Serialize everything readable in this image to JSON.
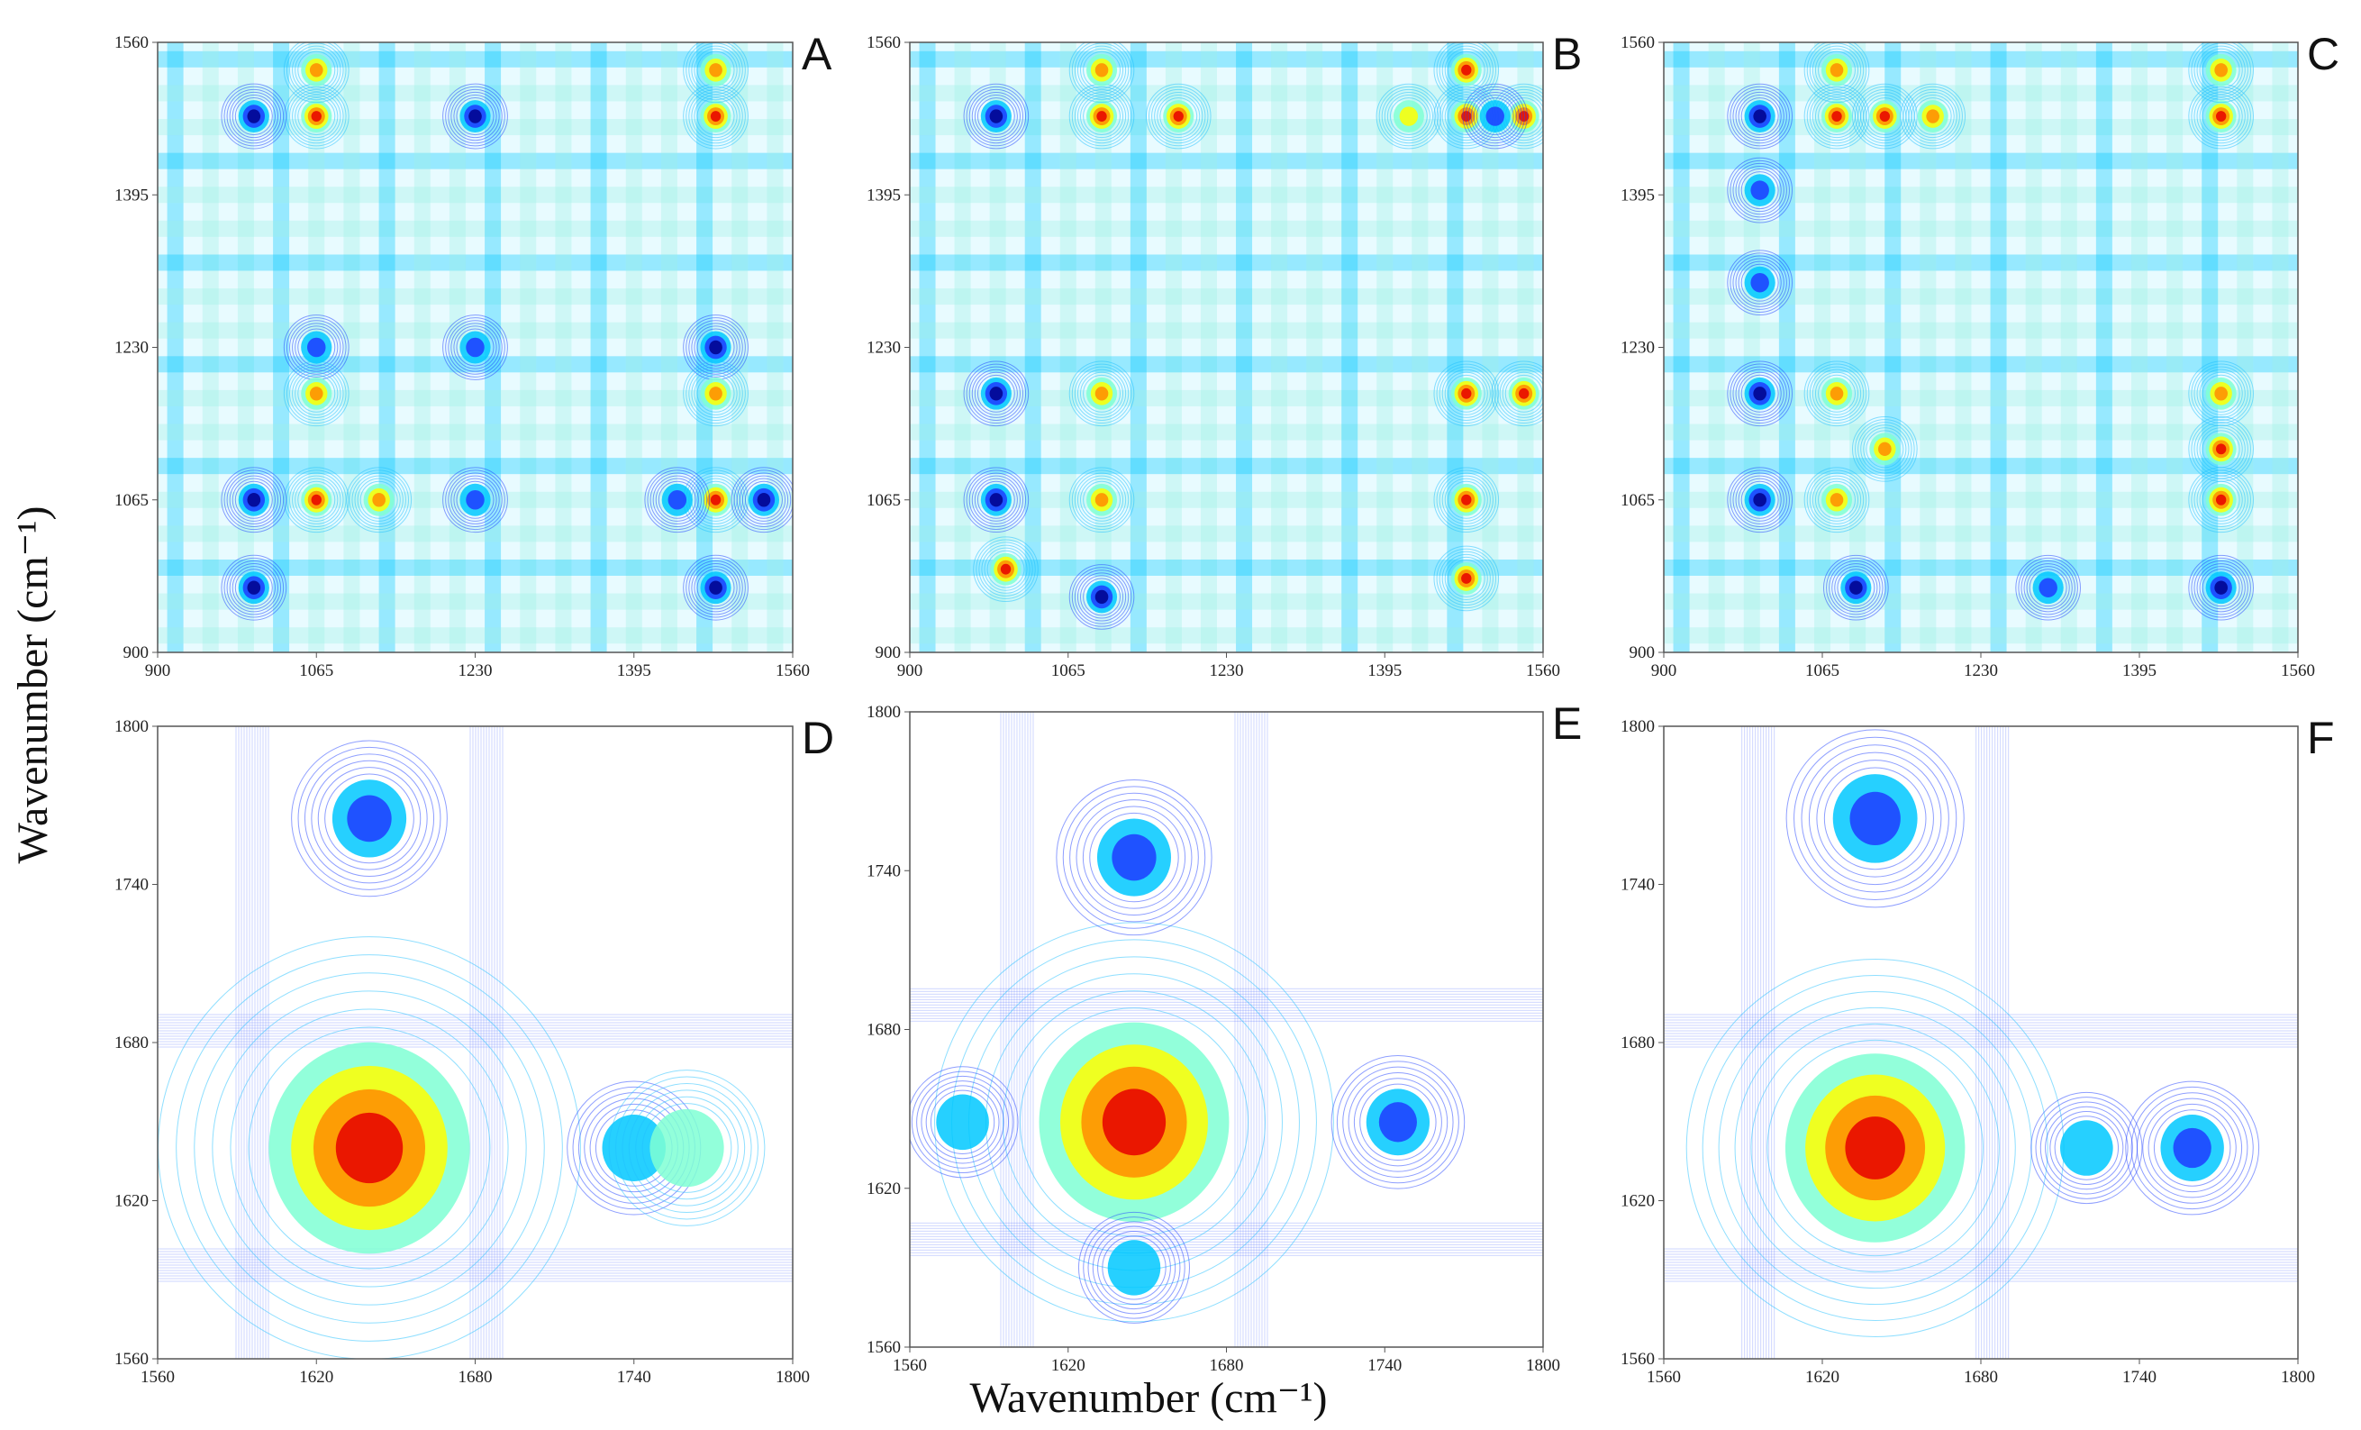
{
  "figure": {
    "ylabel": "Wavenumber (cm⁻¹)",
    "xlabel": "Wavenumber (cm⁻¹)"
  },
  "colors": {
    "scale": [
      "#00008b",
      "#1e3cff",
      "#00c8ff",
      "#7fffd4",
      "#ffff00",
      "#ff8c00",
      "#e60000"
    ]
  },
  "chart_data": [
    {
      "type": "heatmap",
      "label": "A",
      "xlim": [
        900,
        1560
      ],
      "ylim": [
        900,
        1560
      ],
      "xticks": [
        "900",
        "1065",
        "1230",
        "1395",
        "1560"
      ],
      "yticks": [
        "900",
        "1065",
        "1230",
        "1395",
        "1560"
      ],
      "hotspots": [
        {
          "x": 1065,
          "y": 1065,
          "v": 1
        },
        {
          "x": 1000,
          "y": 1065,
          "v": -1
        },
        {
          "x": 1130,
          "y": 1065,
          "v": 0.7
        },
        {
          "x": 1480,
          "y": 1065,
          "v": 1
        },
        {
          "x": 1440,
          "y": 1065,
          "v": -0.8
        },
        {
          "x": 1530,
          "y": 1065,
          "v": -1
        },
        {
          "x": 1065,
          "y": 1480,
          "v": 1
        },
        {
          "x": 1000,
          "y": 1480,
          "v": -1
        },
        {
          "x": 1480,
          "y": 1480,
          "v": 1
        },
        {
          "x": 1230,
          "y": 1480,
          "v": -0.9
        },
        {
          "x": 1230,
          "y": 1230,
          "v": -0.5
        },
        {
          "x": 1480,
          "y": 1230,
          "v": -0.9
        },
        {
          "x": 1065,
          "y": 1230,
          "v": -0.8
        },
        {
          "x": 1065,
          "y": 1530,
          "v": 0.8
        },
        {
          "x": 1480,
          "y": 1530,
          "v": 0.8
        },
        {
          "x": 1065,
          "y": 1180,
          "v": 0.8
        },
        {
          "x": 1480,
          "y": 1180,
          "v": 0.8
        },
        {
          "x": 1000,
          "y": 970,
          "v": -0.9
        },
        {
          "x": 1480,
          "y": 970,
          "v": -0.9
        },
        {
          "x": 1230,
          "y": 1065,
          "v": -0.7
        }
      ]
    },
    {
      "type": "heatmap",
      "label": "B",
      "xlim": [
        900,
        1560
      ],
      "ylim": [
        900,
        1560
      ],
      "xticks": [
        "900",
        "1065",
        "1230",
        "1395",
        "1560"
      ],
      "yticks": [
        "900",
        "1065",
        "1230",
        "1395",
        "1560"
      ],
      "hotspots": [
        {
          "x": 1480,
          "y": 1480,
          "v": 1
        },
        {
          "x": 1540,
          "y": 1480,
          "v": 0.9
        },
        {
          "x": 1100,
          "y": 1480,
          "v": 0.9
        },
        {
          "x": 1180,
          "y": 1480,
          "v": 0.9
        },
        {
          "x": 990,
          "y": 1480,
          "v": -1
        },
        {
          "x": 1510,
          "y": 1480,
          "v": -0.7
        },
        {
          "x": 1480,
          "y": 1065,
          "v": 1
        },
        {
          "x": 1100,
          "y": 1065,
          "v": 0.8
        },
        {
          "x": 990,
          "y": 1065,
          "v": -1
        },
        {
          "x": 1480,
          "y": 1180,
          "v": 1
        },
        {
          "x": 1540,
          "y": 1180,
          "v": 0.9
        },
        {
          "x": 1100,
          "y": 1180,
          "v": 0.8
        },
        {
          "x": 990,
          "y": 1180,
          "v": -1
        },
        {
          "x": 1480,
          "y": 1530,
          "v": 0.9
        },
        {
          "x": 1100,
          "y": 1530,
          "v": 0.8
        },
        {
          "x": 1480,
          "y": 980,
          "v": 1
        },
        {
          "x": 1000,
          "y": 990,
          "v": 0.9
        },
        {
          "x": 1100,
          "y": 960,
          "v": -0.9
        },
        {
          "x": 1420,
          "y": 1480,
          "v": 0.6
        }
      ]
    },
    {
      "type": "heatmap",
      "label": "C",
      "xlim": [
        900,
        1560
      ],
      "ylim": [
        900,
        1560
      ],
      "xticks": [
        "900",
        "1065",
        "1230",
        "1395",
        "1560"
      ],
      "yticks": [
        "900",
        "1065",
        "1230",
        "1395",
        "1560"
      ],
      "hotspots": [
        {
          "x": 1480,
          "y": 1480,
          "v": 1
        },
        {
          "x": 1080,
          "y": 1480,
          "v": 0.9
        },
        {
          "x": 1130,
          "y": 1480,
          "v": 0.9
        },
        {
          "x": 1180,
          "y": 1480,
          "v": 0.8
        },
        {
          "x": 1000,
          "y": 1480,
          "v": -1
        },
        {
          "x": 1480,
          "y": 1530,
          "v": 0.8
        },
        {
          "x": 1080,
          "y": 1530,
          "v": 0.7
        },
        {
          "x": 1480,
          "y": 1065,
          "v": 1
        },
        {
          "x": 1480,
          "y": 1120,
          "v": 0.9
        },
        {
          "x": 1480,
          "y": 1180,
          "v": 0.8
        },
        {
          "x": 1080,
          "y": 1065,
          "v": 0.8
        },
        {
          "x": 1130,
          "y": 1120,
          "v": 0.8
        },
        {
          "x": 1080,
          "y": 1180,
          "v": 0.7
        },
        {
          "x": 1000,
          "y": 1065,
          "v": -1
        },
        {
          "x": 1000,
          "y": 1180,
          "v": -1
        },
        {
          "x": 1100,
          "y": 970,
          "v": -1
        },
        {
          "x": 1480,
          "y": 970,
          "v": -1
        },
        {
          "x": 1300,
          "y": 970,
          "v": -0.8
        },
        {
          "x": 1000,
          "y": 1300,
          "v": -0.7
        },
        {
          "x": 1000,
          "y": 1400,
          "v": -0.8
        }
      ]
    },
    {
      "type": "heatmap",
      "label": "D",
      "xlim": [
        1560,
        1800
      ],
      "ylim": [
        1560,
        1800
      ],
      "xticks": [
        "1560",
        "1620",
        "1680",
        "1740",
        "1800"
      ],
      "yticks": [
        "1560",
        "1620",
        "1680",
        "1740",
        "1800"
      ],
      "hotspots": [
        {
          "x": 1640,
          "y": 1640,
          "v": 1,
          "s": 38
        },
        {
          "x": 1640,
          "y": 1765,
          "v": -0.5,
          "s": 14
        },
        {
          "x": 1740,
          "y": 1640,
          "v": -0.4,
          "s": 12
        },
        {
          "x": 1760,
          "y": 1640,
          "v": 0.15,
          "s": 14
        }
      ]
    },
    {
      "type": "heatmap",
      "label": "E",
      "xlim": [
        1560,
        1800
      ],
      "ylim": [
        1560,
        1800
      ],
      "xticks": [
        "1560",
        "1620",
        "1680",
        "1740",
        "1800"
      ],
      "yticks": [
        "1560",
        "1620",
        "1680",
        "1740",
        "1800"
      ],
      "hotspots": [
        {
          "x": 1645,
          "y": 1645,
          "v": 1,
          "s": 36
        },
        {
          "x": 1645,
          "y": 1745,
          "v": -0.55,
          "s": 14
        },
        {
          "x": 1745,
          "y": 1645,
          "v": -0.55,
          "s": 12
        },
        {
          "x": 1645,
          "y": 1590,
          "v": -0.3,
          "s": 10
        },
        {
          "x": 1580,
          "y": 1645,
          "v": -0.3,
          "s": 10
        }
      ]
    },
    {
      "type": "heatmap",
      "label": "F",
      "xlim": [
        1560,
        1800
      ],
      "ylim": [
        1560,
        1800
      ],
      "xticks": [
        "1560",
        "1620",
        "1680",
        "1740",
        "1800"
      ],
      "yticks": [
        "1560",
        "1620",
        "1680",
        "1740",
        "1800"
      ],
      "hotspots": [
        {
          "x": 1640,
          "y": 1640,
          "v": 1,
          "s": 34
        },
        {
          "x": 1640,
          "y": 1765,
          "v": -0.5,
          "s": 16
        },
        {
          "x": 1760,
          "y": 1640,
          "v": -0.5,
          "s": 12
        },
        {
          "x": 1720,
          "y": 1640,
          "v": -0.35,
          "s": 10
        }
      ]
    }
  ]
}
